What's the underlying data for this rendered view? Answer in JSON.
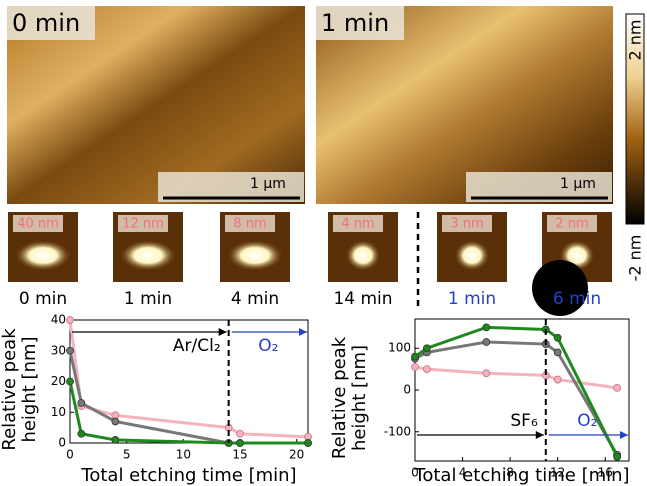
{
  "images": [
    {
      "label": "0 min",
      "scale_bar": "1 µm"
    },
    {
      "label": "1 min",
      "scale_bar": "1 µm"
    }
  ],
  "colorbar": {
    "top": "2 nm",
    "bottom": "-2 nm"
  },
  "panels": [
    {
      "height": "40 nm",
      "caption": "0 min",
      "caption_color": "#000000"
    },
    {
      "height": "12 nm",
      "caption": "1 min",
      "caption_color": "#000000"
    },
    {
      "height": "8 nm",
      "caption": "4 min",
      "caption_color": "#000000"
    },
    {
      "height": "4 nm",
      "caption": "14 min",
      "caption_color": "#000000"
    },
    {
      "height": "3 nm",
      "caption": "1 min",
      "caption_color": "#2440c8"
    },
    {
      "height": "2 nm",
      "caption": "6 min",
      "caption_color": "#2440c8"
    }
  ],
  "chart_data": [
    {
      "type": "line",
      "xlabel": "Total etching time [min]",
      "ylabel": [
        "Relative peak",
        "height [nm]"
      ],
      "x": [
        0,
        1,
        4,
        14,
        15,
        21
      ],
      "series": [
        {
          "color": "#f4b3bd",
          "values": [
            40,
            12,
            9,
            5,
            3,
            2
          ]
        },
        {
          "color": "#777777",
          "values": [
            30,
            13,
            7,
            0,
            0,
            0
          ]
        },
        {
          "color": "#1e8a1e",
          "values": [
            20,
            3,
            1,
            0,
            0,
            0
          ]
        }
      ],
      "xlim": [
        0,
        21
      ],
      "xticks": [
        0,
        5,
        10,
        15,
        20
      ],
      "ylim": [
        0,
        40
      ],
      "yticks": [
        0,
        10,
        20,
        30,
        40
      ],
      "vline_x": 14,
      "annotations": [
        {
          "text": "Ar/Cl₂",
          "color": "#000000"
        },
        {
          "text": "O₂",
          "color": "#2440c8"
        }
      ]
    },
    {
      "type": "line",
      "xlabel": "Total etching time [min]",
      "ylabel": [
        "Relative peak",
        "height [nm]"
      ],
      "x": [
        0,
        1,
        6,
        11,
        12,
        17
      ],
      "series": [
        {
          "color": "#f4b3bd",
          "values": [
            55,
            50,
            40,
            35,
            25,
            5
          ]
        },
        {
          "color": "#777777",
          "values": [
            75,
            90,
            115,
            110,
            90,
            -155
          ]
        },
        {
          "color": "#1e8a1e",
          "values": [
            80,
            100,
            150,
            145,
            125,
            -160
          ]
        }
      ],
      "xlim": [
        0,
        18
      ],
      "xticks": [
        0,
        4,
        8,
        12,
        16
      ],
      "ylim": [
        -170,
        170
      ],
      "yticks": [
        -100,
        0,
        100
      ],
      "vline_x": 11,
      "annotations": [
        {
          "text": "SF₆",
          "color": "#000000"
        },
        {
          "text": "O₂",
          "color": "#2440c8"
        }
      ]
    }
  ]
}
